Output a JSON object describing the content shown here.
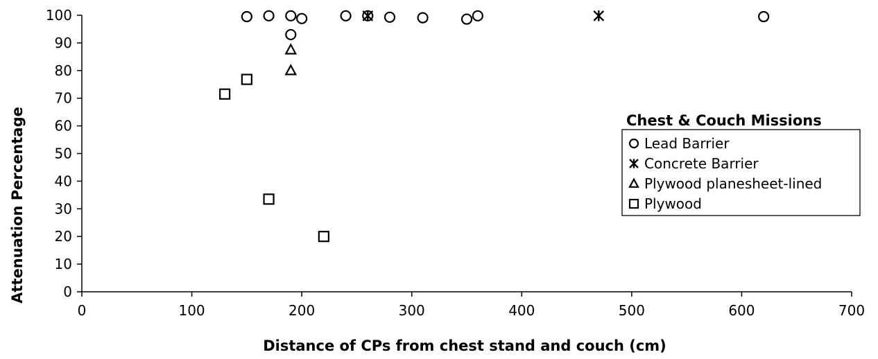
{
  "chart_data": {
    "type": "scatter",
    "title": "",
    "xlabel": "Distance of CPs from chest stand and couch (cm)",
    "ylabel": "Attenuation Percentage",
    "xlim": [
      0,
      700
    ],
    "ylim": [
      0,
      100
    ],
    "x_ticks": [
      0,
      100,
      200,
      300,
      400,
      500,
      600,
      700
    ],
    "y_ticks": [
      0,
      10,
      20,
      30,
      40,
      50,
      60,
      70,
      80,
      90,
      100
    ],
    "grid": false,
    "legend": {
      "title": "Chest & Couch Missions",
      "placement": "right"
    },
    "series": [
      {
        "name": "Lead Barrier",
        "marker": "circle",
        "points": [
          {
            "x": 150,
            "y": 99.5
          },
          {
            "x": 170,
            "y": 99.8
          },
          {
            "x": 190,
            "y": 99.8
          },
          {
            "x": 190,
            "y": 93
          },
          {
            "x": 200,
            "y": 98.8
          },
          {
            "x": 240,
            "y": 99.8
          },
          {
            "x": 260,
            "y": 99.8
          },
          {
            "x": 280,
            "y": 99.3
          },
          {
            "x": 310,
            "y": 99.1
          },
          {
            "x": 350,
            "y": 98.6
          },
          {
            "x": 360,
            "y": 99.8
          },
          {
            "x": 620,
            "y": 99.5
          }
        ]
      },
      {
        "name": "Concrete Barrier",
        "marker": "asterisk",
        "points": [
          {
            "x": 260,
            "y": 99.8
          },
          {
            "x": 470,
            "y": 99.8
          }
        ]
      },
      {
        "name": "Plywood planesheet-lined",
        "marker": "triangle",
        "points": [
          {
            "x": 190,
            "y": 87.5
          },
          {
            "x": 190,
            "y": 80
          }
        ]
      },
      {
        "name": "Plywood",
        "marker": "square",
        "points": [
          {
            "x": 130,
            "y": 71.5
          },
          {
            "x": 150,
            "y": 76.8
          },
          {
            "x": 170,
            "y": 33.5
          },
          {
            "x": 220,
            "y": 20
          }
        ]
      }
    ]
  }
}
